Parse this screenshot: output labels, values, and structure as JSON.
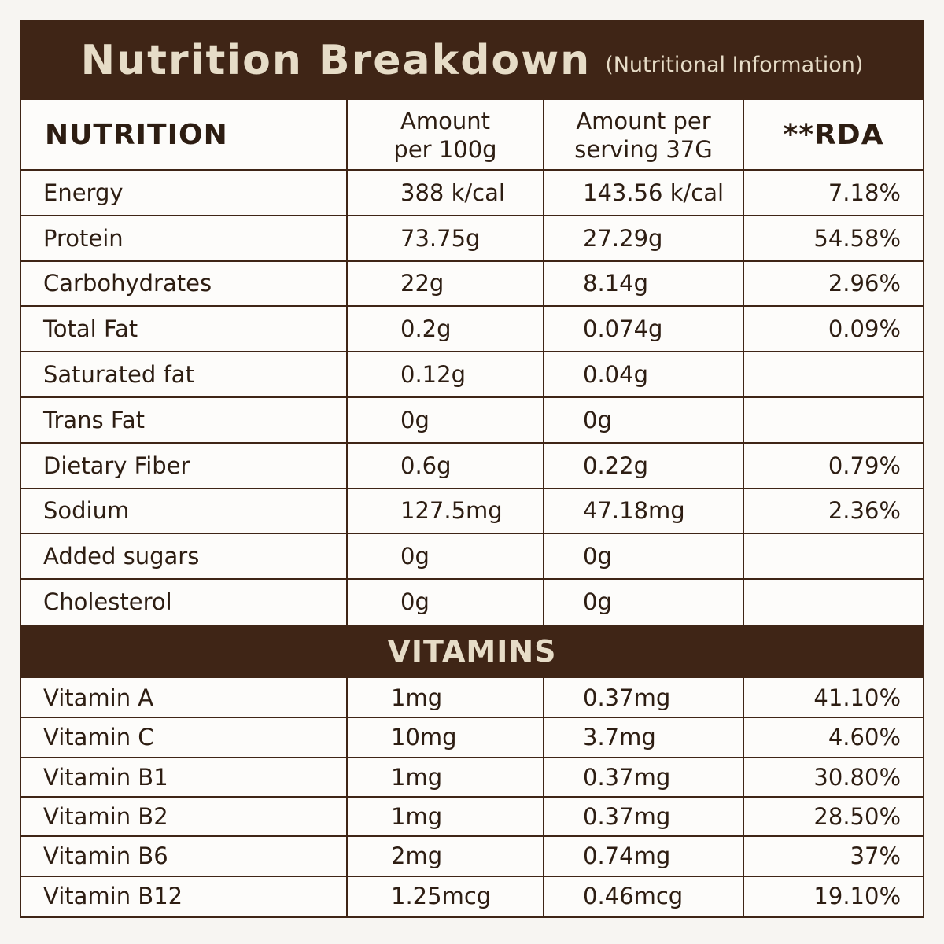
{
  "title": "Nutrition Breakdown",
  "subtitle": "(Nutritional Information)",
  "header": {
    "nutrition": "NUTRITION",
    "per100_line1": "Amount",
    "per100_line2": "per 100g",
    "serving_line1": "Amount per",
    "serving_line2": "serving 37G",
    "rda": "**RDA"
  },
  "nutrients": [
    {
      "name": "Energy",
      "per100": "388 k/cal",
      "serving": "143.56 k/cal",
      "rda": "7.18%"
    },
    {
      "name": "Protein",
      "per100": "73.75g",
      "serving": "27.29g",
      "rda": "54.58%"
    },
    {
      "name": "Carbohydrates",
      "per100": "22g",
      "serving": "8.14g",
      "rda": "2.96%"
    },
    {
      "name": "Total Fat",
      "per100": "0.2g",
      "serving": "0.074g",
      "rda": "0.09%"
    },
    {
      "name": "Saturated fat",
      "per100": "0.12g",
      "serving": "0.04g",
      "rda": ""
    },
    {
      "name": "Trans Fat",
      "per100": "0g",
      "serving": "0g",
      "rda": ""
    },
    {
      "name": "Dietary Fiber",
      "per100": "0.6g",
      "serving": "0.22g",
      "rda": "0.79%"
    },
    {
      "name": "Sodium",
      "per100": "127.5mg",
      "serving": "47.18mg",
      "rda": "2.36%"
    },
    {
      "name": "Added sugars",
      "per100": "0g",
      "serving": "0g",
      "rda": ""
    },
    {
      "name": "Cholesterol",
      "per100": "0g",
      "serving": "0g",
      "rda": ""
    }
  ],
  "vitamins_label": "VITAMINS",
  "vitamins": [
    {
      "name": "Vitamin A",
      "per100": "1mg",
      "serving": "0.37mg",
      "rda": "41.10%"
    },
    {
      "name": "Vitamin C",
      "per100": "10mg",
      "serving": "3.7mg",
      "rda": "4.60%"
    },
    {
      "name": "Vitamin B1",
      "per100": "1mg",
      "serving": "0.37mg",
      "rda": "30.80%"
    },
    {
      "name": "Vitamin B2",
      "per100": "1mg",
      "serving": "0.37mg",
      "rda": "28.50%"
    },
    {
      "name": "Vitamin B6",
      "per100": "2mg",
      "serving": "0.74mg",
      "rda": "37%"
    },
    {
      "name": "Vitamin B12",
      "per100": "1.25mcg",
      "serving": "0.46mcg",
      "rda": "19.10%"
    }
  ],
  "colors": {
    "brand_brown": "#3f2516",
    "title_text": "#e6dcc7"
  }
}
